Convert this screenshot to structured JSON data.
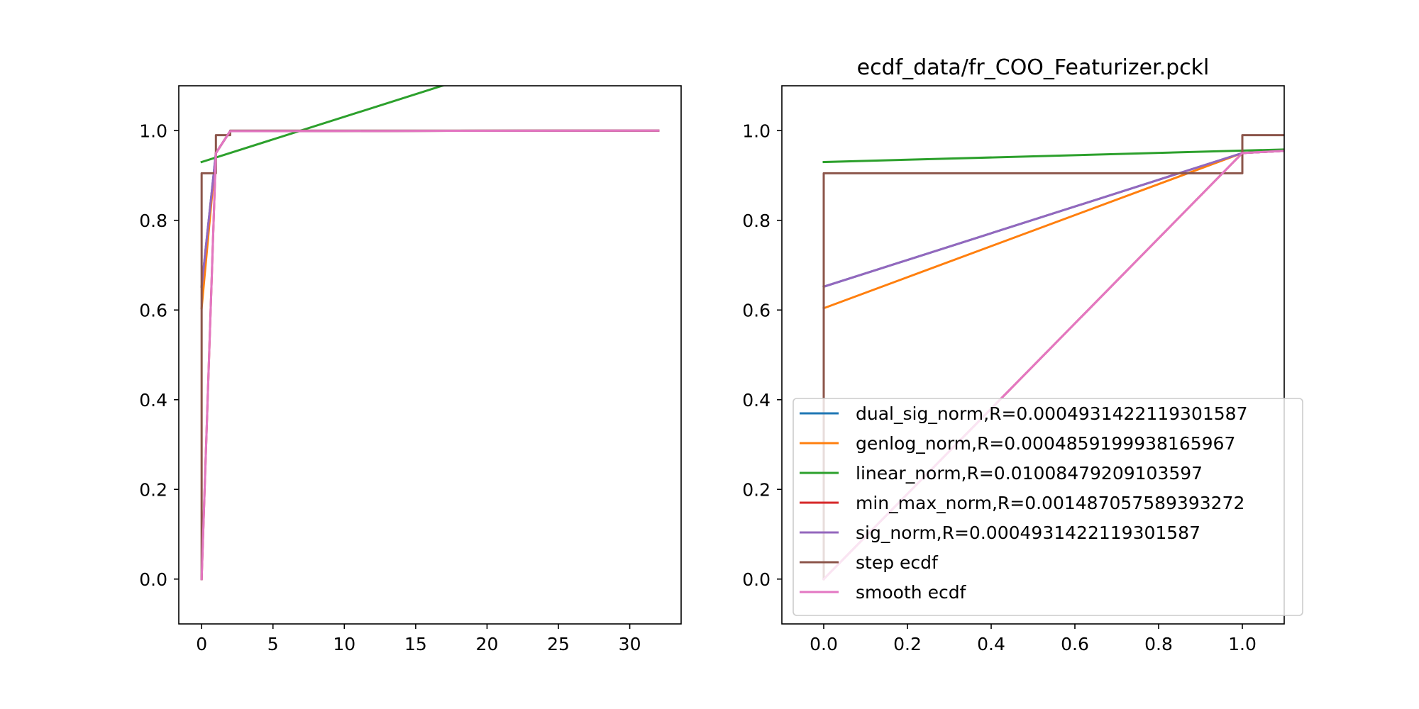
{
  "figure": {
    "background": "#ffffff"
  },
  "chart_data": [
    {
      "type": "line",
      "title": "",
      "xlabel": "",
      "ylabel": "",
      "xlim": [
        -1.6,
        33.6
      ],
      "ylim": [
        -0.1,
        1.1
      ],
      "xticks": [
        0,
        5,
        10,
        15,
        20,
        25,
        30
      ],
      "yticks": [
        0.0,
        0.2,
        0.4,
        0.6,
        0.8,
        1.0
      ],
      "grid": false,
      "series": [
        {
          "name": "dual_sig_norm,R=0.0004931422119301587",
          "color": "#1f77b4",
          "x": [
            0,
            1,
            2,
            32
          ],
          "y": [
            0.652,
            0.95,
            0.999,
            1.0
          ]
        },
        {
          "name": "genlog_norm,R=0.0004859199938165967",
          "color": "#ff7f0e",
          "x": [
            0,
            1,
            2,
            32
          ],
          "y": [
            0.604,
            0.95,
            0.999,
            1.0
          ]
        },
        {
          "name": "linear_norm,R=0.01008479209103597",
          "color": "#2ca02c",
          "x": [
            0,
            33.6
          ],
          "y": [
            0.93,
            1.269
          ]
        },
        {
          "name": "min_max_norm,R=0.001487057589393272",
          "color": "#d62728",
          "x": [
            0,
            1,
            2,
            32
          ],
          "y": [
            0.0,
            0.95,
            0.999,
            1.0
          ]
        },
        {
          "name": "sig_norm,R=0.0004931422119301587",
          "color": "#9467bd",
          "x": [
            0,
            1,
            2,
            32
          ],
          "y": [
            0.652,
            0.95,
            0.999,
            1.0
          ]
        },
        {
          "name": "step ecdf",
          "color": "#8c564b",
          "x": [
            0,
            0,
            1,
            1,
            2,
            2,
            32
          ],
          "y": [
            0.0,
            0.905,
            0.905,
            0.99,
            0.99,
            1.0,
            1.0
          ]
        },
        {
          "name": "smooth ecdf",
          "color": "#e377c2",
          "x": [
            0,
            1,
            2,
            32
          ],
          "y": [
            0.0,
            0.95,
            0.999,
            1.0
          ]
        }
      ],
      "legend": null
    },
    {
      "type": "line",
      "title": "ecdf_data/fr_COO_Featurizer.pckl",
      "xlabel": "",
      "ylabel": "",
      "xlim": [
        -0.1,
        1.1
      ],
      "ylim": [
        -0.1,
        1.1
      ],
      "xticks": [
        0.0,
        0.2,
        0.4,
        0.6,
        0.8,
        1.0
      ],
      "yticks": [
        0.0,
        0.2,
        0.4,
        0.6,
        0.8,
        1.0
      ],
      "grid": false,
      "series": [
        {
          "name": "dual_sig_norm,R=0.0004931422119301587",
          "color": "#1f77b4",
          "x": [
            0,
            1,
            2
          ],
          "y": [
            0.652,
            0.95,
            0.999
          ]
        },
        {
          "name": "genlog_norm,R=0.0004859199938165967",
          "color": "#ff7f0e",
          "x": [
            0,
            1,
            2
          ],
          "y": [
            0.604,
            0.95,
            0.999
          ]
        },
        {
          "name": "linear_norm,R=0.01008479209103597",
          "color": "#2ca02c",
          "x": [
            0,
            1.1
          ],
          "y": [
            0.93,
            0.958
          ]
        },
        {
          "name": "min_max_norm,R=0.001487057589393272",
          "color": "#d62728",
          "x": [
            0,
            1,
            2
          ],
          "y": [
            0.0,
            0.95,
            0.999
          ]
        },
        {
          "name": "sig_norm,R=0.0004931422119301587",
          "color": "#9467bd",
          "x": [
            0,
            1,
            2
          ],
          "y": [
            0.652,
            0.95,
            0.999
          ]
        },
        {
          "name": "step ecdf",
          "color": "#8c564b",
          "x": [
            0,
            0,
            1,
            1,
            2
          ],
          "y": [
            0.0,
            0.905,
            0.905,
            0.99,
            0.99
          ]
        },
        {
          "name": "smooth ecdf",
          "color": "#e377c2",
          "x": [
            0,
            1,
            2
          ],
          "y": [
            0.0,
            0.95,
            0.999
          ]
        }
      ],
      "legend": {
        "placement": "lower-right",
        "entries": [
          {
            "label": "dual_sig_norm,R=0.0004931422119301587",
            "color": "#1f77b4"
          },
          {
            "label": "genlog_norm,R=0.0004859199938165967",
            "color": "#ff7f0e"
          },
          {
            "label": "linear_norm,R=0.01008479209103597",
            "color": "#2ca02c"
          },
          {
            "label": "min_max_norm,R=0.001487057589393272",
            "color": "#d62728"
          },
          {
            "label": "sig_norm,R=0.0004931422119301587",
            "color": "#9467bd"
          },
          {
            "label": "step ecdf",
            "color": "#8c564b"
          },
          {
            "label": "smooth ecdf",
            "color": "#e377c2"
          }
        ]
      }
    }
  ]
}
